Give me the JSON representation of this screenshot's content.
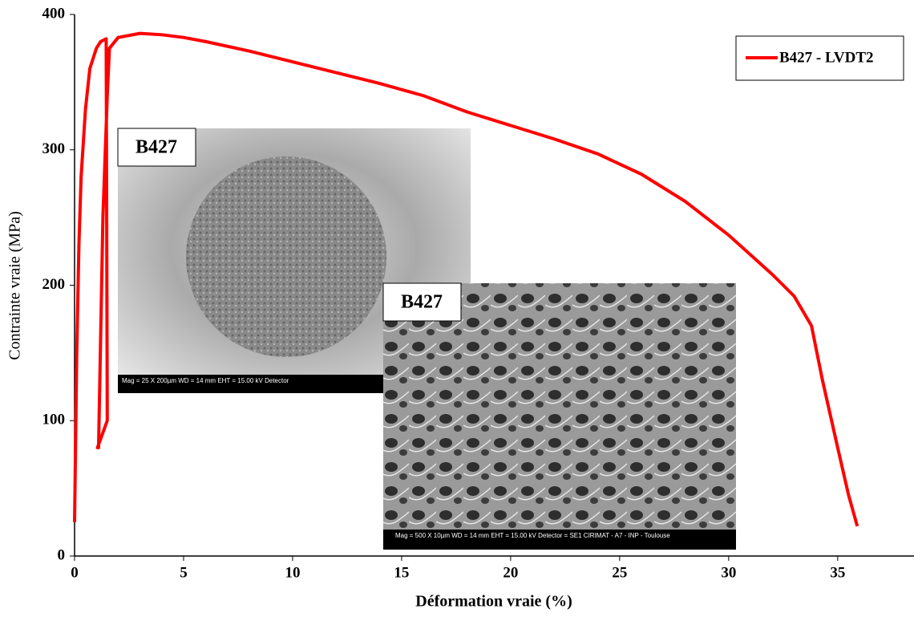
{
  "chart_data": {
    "type": "line",
    "xlabel": "Déformation vraie (%)",
    "ylabel": "Contrainte vraie (MPa)",
    "xlim": [
      0,
      38.5
    ],
    "xticks": [
      0,
      5,
      10,
      15,
      20,
      25,
      30,
      35
    ],
    "ylim": [
      0,
      400
    ],
    "yticks": [
      0,
      100,
      200,
      300,
      400
    ],
    "legend": "top-right",
    "series": [
      {
        "name": "B427 - LVDT2",
        "color": "#ff0000",
        "x": [
          0,
          0.1,
          0.2,
          0.3,
          0.5,
          0.7,
          1.0,
          1.2,
          1.45,
          1.5,
          1.05,
          1.1,
          1.3,
          1.5,
          1.6,
          2,
          3,
          4,
          5,
          6,
          8,
          10,
          12,
          14,
          16,
          18,
          20,
          22,
          24,
          26,
          28,
          30,
          32,
          33,
          33.8,
          34.3,
          35,
          35.5,
          35.9
        ],
        "values": [
          25,
          150,
          230,
          280,
          330,
          360,
          375,
          380,
          382,
          100,
          80,
          80,
          250,
          340,
          375,
          383,
          386,
          385,
          383,
          380,
          373,
          365,
          357,
          349,
          340,
          328,
          318,
          308,
          297,
          282,
          262,
          237,
          208,
          192,
          170,
          130,
          80,
          45,
          22
        ]
      }
    ],
    "insets": [
      {
        "label": "B427",
        "caption": "Mag =   25 X        200µm          WD =  14 mm     EHT = 15.00 kV    Detector"
      },
      {
        "label": "B427",
        "caption": "Mag =  500 X        10µm          WD =  14 mm     EHT = 15.00 kV    Detector = SE1   CIRIMAT - A7 - INP - Toulouse"
      }
    ]
  }
}
